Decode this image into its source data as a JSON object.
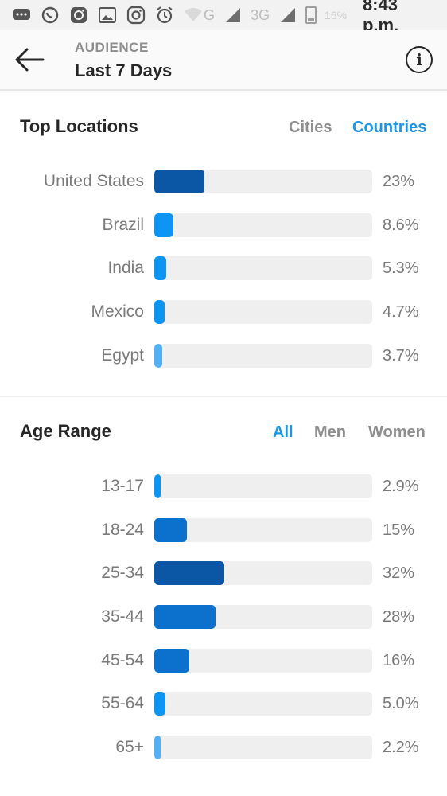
{
  "status_bar": {
    "icons": [
      "chat-icon",
      "whatsapp-icon",
      "instagram-icon",
      "gallery-icon",
      "instagram-icon",
      "alarm-icon",
      "wifi-icon"
    ],
    "network_labels": [
      "G",
      "3G"
    ],
    "battery": "16%",
    "time": "8:43 p.m."
  },
  "header": {
    "subtitle": "AUDIENCE",
    "title": "Last 7 Days",
    "info_glyph": "i"
  },
  "top_locations": {
    "title": "Top Locations",
    "filters": [
      {
        "label": "Cities",
        "active": false
      },
      {
        "label": "Countries",
        "active": true
      }
    ],
    "rows": [
      {
        "label": "United States",
        "value_text": "23%",
        "fraction": 0.23,
        "color": "#0c56a6"
      },
      {
        "label": "Brazil",
        "value_text": "8.6%",
        "fraction": 0.086,
        "color": "#0c95f2"
      },
      {
        "label": "India",
        "value_text": "5.3%",
        "fraction": 0.053,
        "color": "#0c95f2"
      },
      {
        "label": "Mexico",
        "value_text": "4.7%",
        "fraction": 0.047,
        "color": "#0c95f2"
      },
      {
        "label": "Egypt",
        "value_text": "3.7%",
        "fraction": 0.037,
        "color": "#52b0f5"
      }
    ]
  },
  "age_range": {
    "title": "Age Range",
    "filters": [
      {
        "label": "All",
        "active": true
      },
      {
        "label": "Men",
        "active": false
      },
      {
        "label": "Women",
        "active": false
      }
    ],
    "rows": [
      {
        "label": "13-17",
        "value_text": "2.9%",
        "fraction": 0.029,
        "color": "#0c95f2"
      },
      {
        "label": "18-24",
        "value_text": "15%",
        "fraction": 0.15,
        "color": "#0b71cd"
      },
      {
        "label": "25-34",
        "value_text": "32%",
        "fraction": 0.32,
        "color": "#0c56a6"
      },
      {
        "label": "35-44",
        "value_text": "28%",
        "fraction": 0.28,
        "color": "#0b71cd"
      },
      {
        "label": "45-54",
        "value_text": "16%",
        "fraction": 0.16,
        "color": "#0b71cd"
      },
      {
        "label": "55-64",
        "value_text": "5.0%",
        "fraction": 0.05,
        "color": "#0c95f2"
      },
      {
        "label": "65+",
        "value_text": "2.2%",
        "fraction": 0.022,
        "color": "#52b0f5"
      }
    ]
  }
}
